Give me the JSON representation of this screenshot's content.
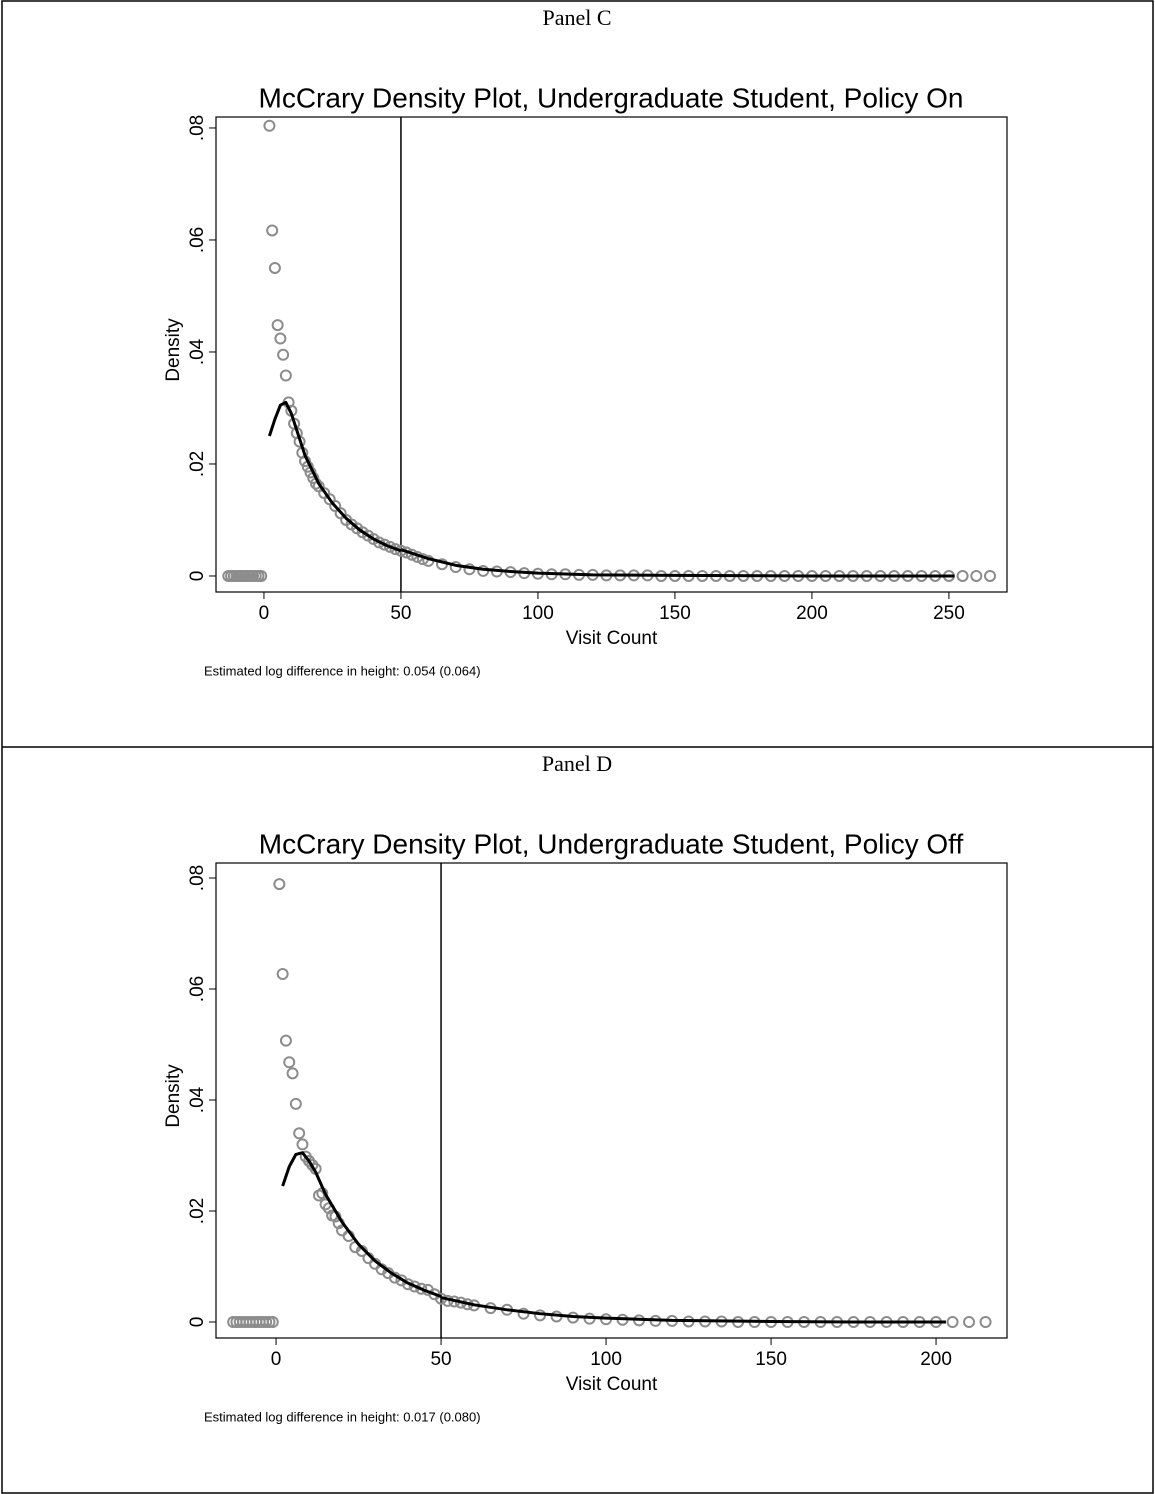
{
  "chart_data": [
    {
      "type": "scatter",
      "panel": "Panel C",
      "title": "McCrary Density Plot, Undergraduate Student, Policy On",
      "xlabel": "Visit Count",
      "ylabel": "Density",
      "note": "Estimated log difference in height: 0.054 (0.064)",
      "xlim": [
        -17.5,
        271.2
      ],
      "ylim": [
        -0.00286,
        0.08196
      ],
      "xticks": [
        0,
        50,
        100,
        150,
        200,
        250
      ],
      "yticks": [
        0,
        {
          "value": 0.02,
          "label": ".02"
        },
        {
          "value": 0.04,
          "label": ".04"
        },
        {
          "value": 0.06,
          "label": ".06"
        },
        {
          "value": 0.08,
          "label": ".08"
        }
      ],
      "vline": 50,
      "series": [
        {
          "color": "#8c8c8c",
          "x": [
            -13,
            -12,
            -11,
            -10,
            -9,
            -8,
            -7,
            -6,
            -5,
            -4,
            -3,
            -2,
            -1,
            2,
            3,
            4,
            5,
            6,
            7,
            8,
            9,
            10,
            11,
            12,
            13,
            14,
            15,
            16,
            17,
            18,
            19,
            20,
            22,
            24,
            26,
            28,
            30,
            32,
            34,
            36,
            38,
            40,
            42,
            44,
            46,
            48,
            50,
            52,
            54,
            56,
            58,
            60,
            65,
            70,
            75,
            80,
            85,
            90,
            95,
            100,
            105,
            110,
            115,
            120,
            125,
            130,
            135,
            140,
            145,
            150,
            155,
            160,
            165,
            170,
            175,
            180,
            185,
            190,
            195,
            200,
            205,
            210,
            215,
            220,
            225,
            230,
            235,
            240,
            245,
            250,
            255,
            260,
            265
          ],
          "values": [
            0,
            0,
            0,
            0,
            0,
            0,
            0,
            0,
            0,
            0,
            0,
            0,
            0,
            0.0804,
            0.0617,
            0.055,
            0.0448,
            0.0424,
            0.0395,
            0.0358,
            0.031,
            0.0295,
            0.0272,
            0.0255,
            0.024,
            0.022,
            0.0205,
            0.0195,
            0.0185,
            0.0175,
            0.0165,
            0.016,
            0.0148,
            0.0137,
            0.0125,
            0.0112,
            0.01,
            0.0092,
            0.0085,
            0.0078,
            0.0072,
            0.0066,
            0.006,
            0.0056,
            0.0052,
            0.0048,
            0.0045,
            0.0042,
            0.0038,
            0.0034,
            0.003,
            0.0027,
            0.0021,
            0.0016,
            0.0012,
            0.0009,
            0.0008,
            0.0007,
            0.0005,
            0.0004,
            0.0003,
            0.0003,
            0.0002,
            0.0002,
            0.0001,
            0.0001,
            0.0001,
            0.0001,
            0,
            0,
            0,
            0,
            0,
            0,
            0,
            0,
            0,
            0,
            0,
            0,
            0,
            0,
            0,
            0,
            0,
            0,
            0,
            0,
            0,
            0,
            0,
            0,
            0
          ]
        },
        {
          "color": "#000000",
          "x": [
            2,
            4,
            6,
            8,
            10,
            12,
            15,
            20,
            25,
            30,
            35,
            40,
            45,
            50
          ],
          "values": [
            0.025,
            0.028,
            0.0305,
            0.031,
            0.029,
            0.026,
            0.0215,
            0.0165,
            0.013,
            0.0103,
            0.0082,
            0.0066,
            0.0054,
            0.0045
          ]
        },
        {
          "color": "#000000",
          "x": [
            50,
            60,
            70,
            80,
            90,
            100,
            120,
            150,
            200,
            252
          ],
          "values": [
            0.0047,
            0.0031,
            0.0019,
            0.0012,
            0.0008,
            0.0005,
            0.0002,
            0.0001,
            0,
            0
          ]
        }
      ]
    },
    {
      "type": "scatter",
      "panel": "Panel D",
      "title": "McCrary Density Plot, Undergraduate Student, Policy Off",
      "xlabel": "Visit Count",
      "ylabel": "Density",
      "note": "Estimated log difference in height: 0.017 (0.080)",
      "xlim": [
        -18.2,
        221.5
      ],
      "ylim": [
        -0.00288,
        0.0827
      ],
      "xticks": [
        0,
        50,
        100,
        150,
        200
      ],
      "yticks": [
        0,
        {
          "value": 0.02,
          "label": ".02"
        },
        {
          "value": 0.04,
          "label": ".04"
        },
        {
          "value": 0.06,
          "label": ".06"
        },
        {
          "value": 0.08,
          "label": ".08"
        }
      ],
      "vline": 50,
      "series": [
        {
          "color": "#8c8c8c",
          "x": [
            -13,
            -12,
            -11,
            -10,
            -9,
            -8,
            -7,
            -6,
            -5,
            -4,
            -3,
            -2,
            -1,
            1,
            2,
            3,
            4,
            5,
            6,
            7,
            8,
            9,
            10,
            11,
            12,
            13,
            14,
            15,
            16,
            17,
            18,
            19,
            20,
            22,
            24,
            26,
            28,
            30,
            32,
            34,
            36,
            38,
            40,
            42,
            44,
            46,
            48,
            50,
            52,
            54,
            56,
            58,
            60,
            65,
            70,
            75,
            80,
            85,
            90,
            95,
            100,
            105,
            110,
            115,
            120,
            125,
            130,
            135,
            140,
            145,
            150,
            155,
            160,
            165,
            170,
            175,
            180,
            185,
            190,
            195,
            200,
            205,
            210,
            215
          ],
          "values": [
            0,
            0,
            0,
            0,
            0,
            0,
            0,
            0,
            0,
            0,
            0,
            0,
            0,
            0.0789,
            0.0627,
            0.0507,
            0.0468,
            0.0448,
            0.0393,
            0.034,
            0.032,
            0.0298,
            0.029,
            0.0283,
            0.0276,
            0.0228,
            0.0232,
            0.0212,
            0.0205,
            0.0192,
            0.019,
            0.0178,
            0.0165,
            0.0155,
            0.0135,
            0.0128,
            0.0115,
            0.0105,
            0.0095,
            0.0088,
            0.008,
            0.0075,
            0.0068,
            0.0064,
            0.006,
            0.0058,
            0.005,
            0.0042,
            0.0038,
            0.0037,
            0.0035,
            0.0032,
            0.003,
            0.0025,
            0.0022,
            0.0015,
            0.0012,
            0.001,
            0.0008,
            0.0006,
            0.0005,
            0.0004,
            0.0003,
            0.0002,
            0.0002,
            0.0001,
            0.0001,
            0.0001,
            0,
            0,
            0,
            0,
            0,
            0,
            0,
            0,
            0,
            0,
            0,
            0,
            0,
            0,
            0,
            0
          ]
        },
        {
          "color": "#000000",
          "x": [
            2,
            4,
            6,
            8,
            10,
            12,
            15,
            20,
            25,
            30,
            35,
            40,
            45,
            50
          ],
          "values": [
            0.0245,
            0.028,
            0.0302,
            0.0305,
            0.029,
            0.027,
            0.023,
            0.018,
            0.014,
            0.011,
            0.0088,
            0.007,
            0.0057,
            0.0046
          ]
        },
        {
          "color": "#000000",
          "x": [
            50,
            60,
            70,
            80,
            90,
            100,
            120,
            150,
            175,
            203
          ],
          "values": [
            0.0044,
            0.0031,
            0.0022,
            0.0015,
            0.001,
            0.0007,
            0.0003,
            0.0001,
            0,
            0
          ]
        }
      ]
    }
  ]
}
